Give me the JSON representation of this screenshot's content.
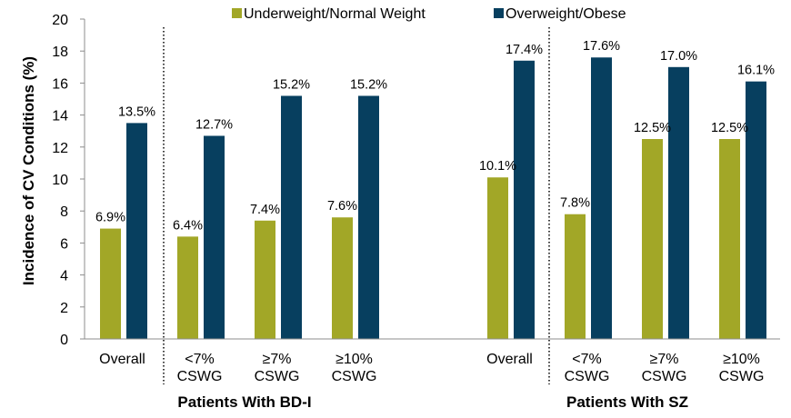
{
  "chart_data": {
    "type": "bar",
    "ylabel": "Incidence of CV Conditions (%)",
    "ylim": [
      0,
      20
    ],
    "yticks": [
      0,
      2,
      4,
      6,
      8,
      10,
      12,
      14,
      16,
      18,
      20
    ],
    "grid": false,
    "legend_position": "top-center",
    "series": [
      {
        "name": "Underweight/Normal Weight",
        "color": "#a2a727"
      },
      {
        "name": "Overweight/Obese",
        "color": "#073f5f"
      }
    ],
    "groups": [
      {
        "label": "Patients With BD-I",
        "categories": [
          {
            "label": [
              "Overall"
            ],
            "values": [
              6.9,
              13.5
            ],
            "value_labels": [
              "6.9%",
              "13.5%"
            ]
          },
          {
            "label": [
              "<7%",
              "CSWG"
            ],
            "values": [
              6.4,
              12.7
            ],
            "value_labels": [
              "6.4%",
              "12.7%"
            ]
          },
          {
            "label": [
              "≥7%",
              "CSWG"
            ],
            "values": [
              7.4,
              15.2
            ],
            "value_labels": [
              "7.4%",
              "15.2%"
            ]
          },
          {
            "label": [
              "≥10%",
              "CSWG"
            ],
            "values": [
              7.6,
              15.2
            ],
            "value_labels": [
              "7.6%",
              "15.2%"
            ]
          }
        ]
      },
      {
        "label": "Patients With SZ",
        "categories": [
          {
            "label": [
              "Overall"
            ],
            "values": [
              10.1,
              17.4
            ],
            "value_labels": [
              "10.1%",
              "17.4%"
            ]
          },
          {
            "label": [
              "<7%",
              "CSWG"
            ],
            "values": [
              7.8,
              17.6
            ],
            "value_labels": [
              "7.8%",
              "17.6%"
            ]
          },
          {
            "label": [
              "≥7%",
              "CSWG"
            ],
            "values": [
              12.5,
              17.0
            ],
            "value_labels": [
              "12.5%",
              "17.0%"
            ]
          },
          {
            "label": [
              "≥10%",
              "CSWG"
            ],
            "values": [
              12.5,
              16.1
            ],
            "value_labels": [
              "12.5%",
              "16.1%"
            ]
          }
        ]
      }
    ]
  }
}
